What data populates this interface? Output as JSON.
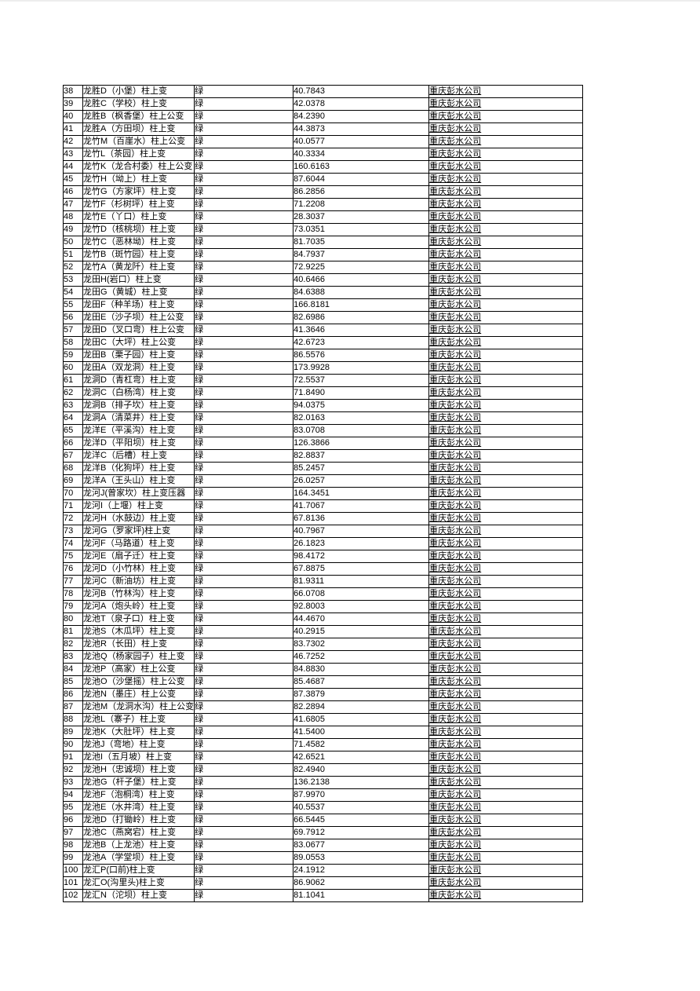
{
  "colors": {
    "company_text": "#4a423d",
    "grid_border": "#000000",
    "page_background": "#ffffff"
  },
  "table": {
    "column_keys": [
      "row_number",
      "name",
      "status",
      "value",
      "company"
    ],
    "rows": [
      [
        "38",
        "龙胜D（小堡）柱上变",
        "绿",
        "40.7843",
        "重庆彭水公司"
      ],
      [
        "39",
        "龙胜C（学校）柱上变",
        "绿",
        "42.0378",
        "重庆彭水公司"
      ],
      [
        "40",
        "龙胜B（枫香堡）柱上公变",
        "绿",
        "84.2390",
        "重庆彭水公司"
      ],
      [
        "41",
        "龙胜A（方田坝）柱上变",
        "绿",
        "44.3873",
        "重庆彭水公司"
      ],
      [
        "42",
        "龙竹M（百崖水）柱上公变",
        "绿",
        "40.0577",
        "重庆彭水公司"
      ],
      [
        "43",
        "龙竹L（茶园）柱上变",
        "绿",
        "40.3334",
        "重庆彭水公司"
      ],
      [
        "44",
        "龙竹K（龙合村委）柱上公变",
        "绿",
        "160.6163",
        "重庆彭水公司"
      ],
      [
        "45",
        "龙竹H（坳上）柱上变",
        "绿",
        "87.6044",
        "重庆彭水公司"
      ],
      [
        "46",
        "龙竹G（方家坪）柱上变",
        "绿",
        "86.2856",
        "重庆彭水公司"
      ],
      [
        "47",
        "龙竹F（杉树坪）柱上变",
        "绿",
        "71.2208",
        "重庆彭水公司"
      ],
      [
        "48",
        "龙竹E（丫口）柱上变",
        "绿",
        "28.3037",
        "重庆彭水公司"
      ],
      [
        "49",
        "龙竹D（核桃坝）柱上变",
        "绿",
        "73.0351",
        "重庆彭水公司"
      ],
      [
        "50",
        "龙竹C（恶林坳）柱上变",
        "绿",
        "81.7035",
        "重庆彭水公司"
      ],
      [
        "51",
        "龙竹B（斑竹园）柱上变",
        "绿",
        "84.7937",
        "重庆彭水公司"
      ],
      [
        "52",
        "龙竹A（黄龙阡）柱上变",
        "绿",
        "72.9225",
        "重庆彭水公司"
      ],
      [
        "53",
        "龙田H(岩口）柱上变",
        "绿",
        "40.6466",
        "重庆彭水公司"
      ],
      [
        "54",
        "龙田G（黄城）柱上变",
        "绿",
        "84.6388",
        "重庆彭水公司"
      ],
      [
        "55",
        "龙田F（种羊场）柱上变",
        "绿",
        "166.8181",
        "重庆彭水公司"
      ],
      [
        "56",
        "龙田E（沙子坝）柱上公变",
        "绿",
        "82.6986",
        "重庆彭水公司"
      ],
      [
        "57",
        "龙田D（叉口弯）柱上公变",
        "绿",
        "41.3646",
        "重庆彭水公司"
      ],
      [
        "58",
        "龙田C（大坪）柱上公变",
        "绿",
        "42.6723",
        "重庆彭水公司"
      ],
      [
        "59",
        "龙田B（栗子园）柱上变",
        "绿",
        "86.5576",
        "重庆彭水公司"
      ],
      [
        "60",
        "龙田A（双龙洞）柱上变",
        "绿",
        "173.9928",
        "重庆彭水公司"
      ],
      [
        "61",
        "龙洞D（青杠弯）柱上变",
        "绿",
        "72.5537",
        "重庆彭水公司"
      ],
      [
        "62",
        "龙洞C（白杨湾）柱上变",
        "绿",
        "71.8490",
        "重庆彭水公司"
      ],
      [
        "63",
        "龙洞B（排子坎）柱上变",
        "绿",
        "94.0375",
        "重庆彭水公司"
      ],
      [
        "64",
        "龙洞A（清菜井）柱上变",
        "绿",
        "82.0163",
        "重庆彭水公司"
      ],
      [
        "65",
        "龙洋E（平溪沟）柱上变",
        "绿",
        "83.0708",
        "重庆彭水公司"
      ],
      [
        "66",
        "龙洋D（平阳坝）柱上变",
        "绿",
        "126.3866",
        "重庆彭水公司"
      ],
      [
        "67",
        "龙洋C（后槽）柱上变",
        "绿",
        "82.8837",
        "重庆彭水公司"
      ],
      [
        "68",
        "龙洋B（化狗坪）柱上变",
        "绿",
        "85.2457",
        "重庆彭水公司"
      ],
      [
        "69",
        "龙洋A（王头山）柱上变",
        "绿",
        "26.0257",
        "重庆彭水公司"
      ],
      [
        "70",
        "龙河J(曾家坎）柱上变压器",
        "绿",
        "164.3451",
        "重庆彭水公司"
      ],
      [
        "71",
        "龙河I（上堰）柱上变",
        "绿",
        "41.7067",
        "重庆彭水公司"
      ],
      [
        "72",
        "龙河H（水鼓边）柱上变",
        "绿",
        "67.8136",
        "重庆彭水公司"
      ],
      [
        "73",
        "龙河G（罗家坪)柱上变",
        "绿",
        "40.7967",
        "重庆彭水公司"
      ],
      [
        "74",
        "龙河F（马路道）柱上变",
        "绿",
        "26.1823",
        "重庆彭水公司"
      ],
      [
        "75",
        "龙河E（扇子迁）柱上变",
        "绿",
        "98.4172",
        "重庆彭水公司"
      ],
      [
        "76",
        "龙河D（小竹林）柱上变",
        "绿",
        "67.8875",
        "重庆彭水公司"
      ],
      [
        "77",
        "龙河C（新油坊）柱上变",
        "绿",
        "81.9311",
        "重庆彭水公司"
      ],
      [
        "78",
        "龙河B（竹林沟）柱上变",
        "绿",
        "66.0708",
        "重庆彭水公司"
      ],
      [
        "79",
        "龙河A（炮头岭）柱上变",
        "绿",
        "92.8003",
        "重庆彭水公司"
      ],
      [
        "80",
        "龙池T（泉子口）柱上变",
        "绿",
        "44.4670",
        "重庆彭水公司"
      ],
      [
        "81",
        "龙池S（木瓜坪）柱上变",
        "绿",
        "40.2915",
        "重庆彭水公司"
      ],
      [
        "82",
        "龙池R（长田）柱上变",
        "绿",
        "83.7302",
        "重庆彭水公司"
      ],
      [
        "83",
        "龙池Q（杨家园子）柱上变",
        "绿",
        "46.7252",
        "重庆彭水公司"
      ],
      [
        "84",
        "龙池P（高家）柱上公变",
        "绿",
        "84.8830",
        "重庆彭水公司"
      ],
      [
        "85",
        "龙池O（沙堡摇）柱上公变",
        "绿",
        "85.4687",
        "重庆彭水公司"
      ],
      [
        "86",
        "龙池N（墨庄）柱上公变",
        "绿",
        "87.3879",
        "重庆彭水公司"
      ],
      [
        "87",
        "龙池M（龙洞水沟）柱上公变",
        "绿",
        "82.2894",
        "重庆彭水公司"
      ],
      [
        "88",
        "龙池L（寨子）柱上变",
        "绿",
        "41.6805",
        "重庆彭水公司"
      ],
      [
        "89",
        "龙池K（大肚坪）柱上变",
        "绿",
        "41.5400",
        "重庆彭水公司"
      ],
      [
        "90",
        "龙池J（弯地）柱上变",
        "绿",
        "71.4582",
        "重庆彭水公司"
      ],
      [
        "91",
        "龙池I（五月坡）柱上变",
        "绿",
        "42.6521",
        "重庆彭水公司"
      ],
      [
        "92",
        "龙池H（忠诚坝）柱上变",
        "绿",
        "82.4940",
        "重庆彭水公司"
      ],
      [
        "93",
        "龙池G（杆子堡）柱上变",
        "绿",
        "136.2138",
        "重庆彭水公司"
      ],
      [
        "94",
        "龙池F（泡桐湾）柱上变",
        "绿",
        "87.9970",
        "重庆彭水公司"
      ],
      [
        "95",
        "龙池E（水井湾）柱上变",
        "绿",
        "40.5537",
        "重庆彭水公司"
      ],
      [
        "96",
        "龙池D（打锄岭）柱上变",
        "绿",
        "66.5445",
        "重庆彭水公司"
      ],
      [
        "97",
        "龙池C（燕窝宕）柱上变",
        "绿",
        "69.7912",
        "重庆彭水公司"
      ],
      [
        "98",
        "龙池B（上龙池）柱上变",
        "绿",
        "83.0677",
        "重庆彭水公司"
      ],
      [
        "99",
        "龙池A（学堂坝）柱上变",
        "绿",
        "89.0553",
        "重庆彭水公司"
      ],
      [
        "100",
        "龙汇P(口前)柱上变",
        "绿",
        "24.1912",
        "重庆彭水公司"
      ],
      [
        "101",
        "龙汇O(沟里头)柱上变",
        "绿",
        "86.9062",
        "重庆彭水公司"
      ],
      [
        "102",
        "龙汇N（沱坝）柱上变",
        "绿",
        "81.1041",
        "重庆彭水公司"
      ]
    ]
  }
}
